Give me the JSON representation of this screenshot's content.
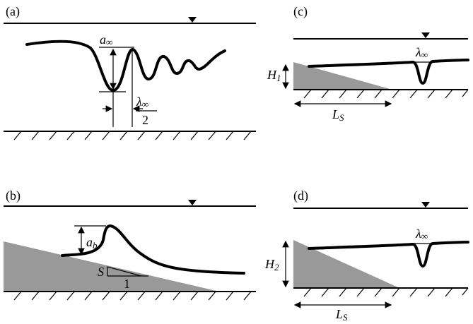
{
  "panels": [
    {
      "label": "(a)",
      "amplitude": {
        "symbol": "a",
        "subscript": "∞"
      },
      "half_wavelength": {
        "numerator": {
          "symbol": "λ",
          "subscript": "∞"
        },
        "denominator": "2"
      }
    },
    {
      "label": "(b)",
      "amplitude": {
        "symbol": "a",
        "subscript": "b"
      },
      "slope_rise": "S",
      "slope_run": "1"
    },
    {
      "label": "(c)",
      "depth": {
        "symbol": "H",
        "subscript": "1"
      },
      "wavelength": {
        "symbol": "λ",
        "subscript": "∞"
      },
      "shelf_length": {
        "symbol": "L",
        "subscript": "S"
      }
    },
    {
      "label": "(d)",
      "depth": {
        "symbol": "H",
        "subscript": "2"
      },
      "wavelength": {
        "symbol": "λ",
        "subscript": "∞"
      },
      "shelf_length": {
        "symbol": "L",
        "subscript": "S"
      }
    }
  ]
}
